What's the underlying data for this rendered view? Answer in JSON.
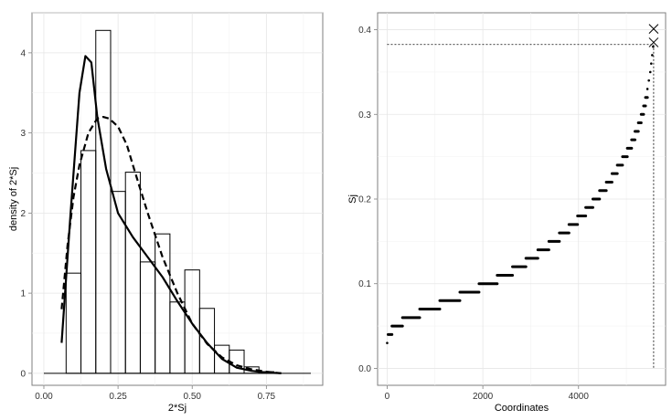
{
  "chart_data": [
    {
      "type": "bar",
      "subtype": "histogram with density curves",
      "xlabel": "2*Sj",
      "ylabel": "density of 2*Sj",
      "xlim": [
        -0.04,
        0.94
      ],
      "ylim": [
        -0.15,
        4.5
      ],
      "x_ticks": [
        "0.00",
        "0.25",
        "0.50",
        "0.75"
      ],
      "x_tick_values": [
        0.0,
        0.25,
        0.5,
        0.75
      ],
      "y_ticks": [
        "0",
        "1",
        "2",
        "3",
        "4"
      ],
      "y_tick_values": [
        0,
        1,
        2,
        3,
        4
      ],
      "grid": true,
      "bins": [
        {
          "x0": 0.025,
          "x1": 0.075,
          "value": 0.0
        },
        {
          "x0": 0.075,
          "x1": 0.125,
          "value": 1.25
        },
        {
          "x0": 0.125,
          "x1": 0.175,
          "value": 2.78
        },
        {
          "x0": 0.175,
          "x1": 0.225,
          "value": 4.28
        },
        {
          "x0": 0.225,
          "x1": 0.275,
          "value": 2.27
        },
        {
          "x0": 0.275,
          "x1": 0.325,
          "value": 2.51
        },
        {
          "x0": 0.325,
          "x1": 0.375,
          "value": 1.39
        },
        {
          "x0": 0.375,
          "x1": 0.425,
          "value": 1.74
        },
        {
          "x0": 0.425,
          "x1": 0.475,
          "value": 0.89
        },
        {
          "x0": 0.475,
          "x1": 0.525,
          "value": 1.29
        },
        {
          "x0": 0.525,
          "x1": 0.575,
          "value": 0.81
        },
        {
          "x0": 0.575,
          "x1": 0.625,
          "value": 0.35
        },
        {
          "x0": 0.625,
          "x1": 0.675,
          "value": 0.29
        },
        {
          "x0": 0.675,
          "x1": 0.725,
          "value": 0.08
        },
        {
          "x0": 0.725,
          "x1": 0.775,
          "value": 0.02
        }
      ],
      "baseline": {
        "from": 0.0,
        "to": 0.9,
        "value": 0
      },
      "series": [
        {
          "style": "solid",
          "x": [
            0.06,
            0.09,
            0.12,
            0.14,
            0.16,
            0.18,
            0.21,
            0.25,
            0.3,
            0.35,
            0.4,
            0.45,
            0.5,
            0.55,
            0.6,
            0.65,
            0.7,
            0.75,
            0.8
          ],
          "y": [
            0.38,
            2.0,
            3.5,
            3.96,
            3.88,
            3.2,
            2.55,
            2.0,
            1.7,
            1.45,
            1.2,
            0.9,
            0.62,
            0.38,
            0.18,
            0.07,
            0.03,
            0.01,
            0.0
          ]
        },
        {
          "style": "dashed",
          "x": [
            0.06,
            0.08,
            0.1,
            0.12,
            0.15,
            0.18,
            0.2,
            0.22,
            0.25,
            0.28,
            0.3,
            0.35,
            0.4,
            0.45,
            0.5,
            0.55,
            0.6,
            0.65,
            0.7,
            0.75,
            0.8
          ],
          "y": [
            0.8,
            1.6,
            2.2,
            2.6,
            3.0,
            3.18,
            3.2,
            3.18,
            3.08,
            2.85,
            2.6,
            2.0,
            1.45,
            1.0,
            0.62,
            0.37,
            0.2,
            0.1,
            0.05,
            0.02,
            0.0
          ]
        }
      ]
    },
    {
      "type": "scatter",
      "xlabel": "Coordinates",
      "ylabel": "Sj",
      "xlim": [
        -200,
        5820
      ],
      "ylim": [
        -0.02,
        0.42
      ],
      "x_ticks": [
        "0",
        "2000",
        "4000"
      ],
      "x_tick_values": [
        0,
        2000,
        4000
      ],
      "y_ticks": [
        "0.0",
        "0.1",
        "0.2",
        "0.3",
        "0.4"
      ],
      "y_tick_values": [
        0.0,
        0.1,
        0.2,
        0.3,
        0.4
      ],
      "grid": true,
      "steps": [
        {
          "x0": 0,
          "x1": 15,
          "y": 0.03
        },
        {
          "x0": 20,
          "x1": 100,
          "y": 0.04
        },
        {
          "x0": 100,
          "x1": 320,
          "y": 0.05
        },
        {
          "x0": 320,
          "x1": 680,
          "y": 0.06
        },
        {
          "x0": 680,
          "x1": 1100,
          "y": 0.07
        },
        {
          "x0": 1100,
          "x1": 1520,
          "y": 0.08
        },
        {
          "x0": 1520,
          "x1": 1920,
          "y": 0.09
        },
        {
          "x0": 1920,
          "x1": 2300,
          "y": 0.1
        },
        {
          "x0": 2300,
          "x1": 2620,
          "y": 0.11
        },
        {
          "x0": 2620,
          "x1": 2900,
          "y": 0.12
        },
        {
          "x0": 2900,
          "x1": 3150,
          "y": 0.13
        },
        {
          "x0": 3150,
          "x1": 3380,
          "y": 0.14
        },
        {
          "x0": 3380,
          "x1": 3600,
          "y": 0.15
        },
        {
          "x0": 3600,
          "x1": 3800,
          "y": 0.16
        },
        {
          "x0": 3800,
          "x1": 3980,
          "y": 0.17
        },
        {
          "x0": 3980,
          "x1": 4150,
          "y": 0.18
        },
        {
          "x0": 4150,
          "x1": 4300,
          "y": 0.19
        },
        {
          "x0": 4300,
          "x1": 4440,
          "y": 0.2
        },
        {
          "x0": 4440,
          "x1": 4580,
          "y": 0.21
        },
        {
          "x0": 4580,
          "x1": 4700,
          "y": 0.22
        },
        {
          "x0": 4700,
          "x1": 4810,
          "y": 0.23
        },
        {
          "x0": 4810,
          "x1": 4920,
          "y": 0.24
        },
        {
          "x0": 4920,
          "x1": 5020,
          "y": 0.25
        },
        {
          "x0": 5020,
          "x1": 5110,
          "y": 0.26
        },
        {
          "x0": 5110,
          "x1": 5180,
          "y": 0.27
        },
        {
          "x0": 5180,
          "x1": 5250,
          "y": 0.28
        },
        {
          "x0": 5250,
          "x1": 5310,
          "y": 0.29
        },
        {
          "x0": 5310,
          "x1": 5360,
          "y": 0.3
        },
        {
          "x0": 5360,
          "x1": 5400,
          "y": 0.31
        },
        {
          "x0": 5400,
          "x1": 5440,
          "y": 0.32
        },
        {
          "x0": 5440,
          "x1": 5470,
          "y": 0.33
        },
        {
          "x0": 5470,
          "x1": 5500,
          "y": 0.34
        },
        {
          "x0": 5500,
          "x1": 5520,
          "y": 0.35
        },
        {
          "x0": 5520,
          "x1": 5540,
          "y": 0.36
        },
        {
          "x0": 5540,
          "x1": 5560,
          "y": 0.37
        },
        {
          "x0": 5560,
          "x1": 5570,
          "y": 0.38
        }
      ],
      "highlight_points": [
        {
          "x": 5570,
          "y": 0.385
        },
        {
          "x": 5570,
          "y": 0.401
        }
      ],
      "threshold_line": {
        "y": 0.3825,
        "x": 5570
      }
    }
  ]
}
